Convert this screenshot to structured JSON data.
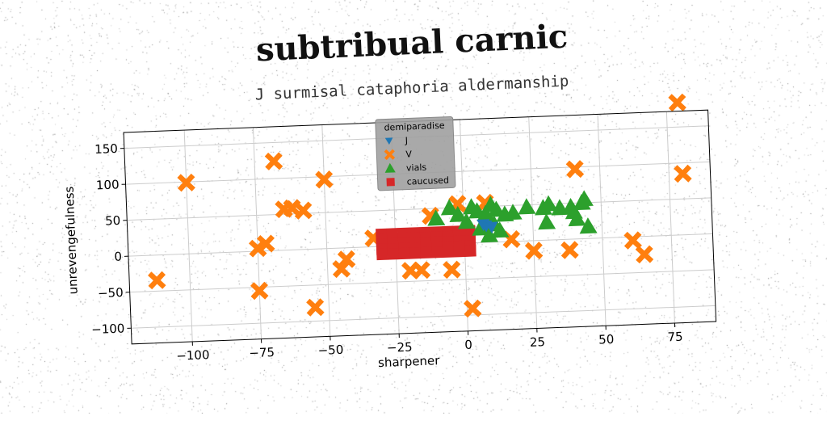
{
  "title": "subtribual carnic",
  "subtitle": "J surmisal cataphoria aldermanship",
  "colors": {
    "J": "#1f77b4",
    "V": "#ff7f0e",
    "vials": "#2ca02c",
    "caucused": "#d62728",
    "grid": "#cccccc",
    "legend_bg": "#a0a0a0"
  },
  "chart_data": {
    "type": "scatter",
    "title": "subtribual carnic",
    "subtitle": "J surmisal cataphoria aldermanship",
    "xlabel": "sharpener",
    "ylabel": "unrevengefulness",
    "xlim": [
      -122,
      90
    ],
    "ylim": [
      -122,
      172
    ],
    "xticks": [
      -100,
      -75,
      -50,
      -25,
      0,
      25,
      50,
      75
    ],
    "xtick_labels": [
      "−100",
      "−75",
      "−50",
      "−25",
      "0",
      "25",
      "50",
      "75"
    ],
    "yticks": [
      -100,
      -50,
      0,
      50,
      100,
      150
    ],
    "ytick_labels": [
      "−100",
      "−50",
      "0",
      "50",
      "100",
      "150"
    ],
    "grid": true,
    "legend": {
      "title": "demiparadise",
      "placement": "top-center",
      "entries": [
        "J",
        "V",
        "vials",
        "caucused"
      ]
    },
    "series": [
      {
        "name": "J",
        "marker": "triangle-down",
        "points": [
          [
            7,
            25
          ],
          [
            8,
            23
          ],
          [
            10,
            21
          ]
        ]
      },
      {
        "name": "V",
        "marker": "x-filled",
        "points": [
          [
            79,
            184
          ],
          [
            80,
            85
          ],
          [
            -100,
            99
          ],
          [
            -68,
            124
          ],
          [
            -50,
            96
          ],
          [
            41,
            97
          ],
          [
            -65,
            57
          ],
          [
            -62,
            58
          ],
          [
            -58,
            54
          ],
          [
            -75,
            4
          ],
          [
            -72,
            10
          ],
          [
            -112,
            -35
          ],
          [
            -75,
            -55
          ],
          [
            -55,
            -81
          ],
          [
            -45,
            -29
          ],
          [
            -43,
            -16
          ],
          [
            -33,
            12
          ],
          [
            -28,
            -2
          ],
          [
            -20,
            -35
          ],
          [
            -16,
            -35
          ],
          [
            -5,
            -36
          ],
          [
            2,
            -91
          ],
          [
            -2,
            55
          ],
          [
            -12,
            40
          ],
          [
            8,
            55
          ],
          [
            17,
            3
          ],
          [
            25,
            -14
          ],
          [
            38,
            -15
          ],
          [
            61,
            -5
          ],
          [
            65,
            -25
          ],
          [
            -22,
            2
          ]
        ]
      },
      {
        "name": "vials",
        "marker": "triangle-up",
        "points": [
          [
            -10,
            36
          ],
          [
            -5,
            50
          ],
          [
            3,
            50
          ],
          [
            5,
            44
          ],
          [
            8,
            40
          ],
          [
            10,
            52
          ],
          [
            12,
            45
          ],
          [
            15,
            38
          ],
          [
            11,
            25
          ],
          [
            6,
            20
          ],
          [
            13,
            16
          ],
          [
            9,
            10
          ],
          [
            18,
            40
          ],
          [
            23,
            47
          ],
          [
            29,
            45
          ],
          [
            31,
            50
          ],
          [
            30,
            25
          ],
          [
            35,
            44
          ],
          [
            39,
            45
          ],
          [
            40,
            38
          ],
          [
            43,
            50
          ],
          [
            44,
            55
          ],
          [
            41,
            28
          ],
          [
            45,
            17
          ],
          [
            -2,
            40
          ],
          [
            1,
            30
          ]
        ]
      },
      {
        "name": "caucused",
        "marker": "square",
        "points": [
          [
            -30,
            17
          ],
          [
            -30,
            10
          ],
          [
            -30,
            3
          ],
          [
            -30,
            -4
          ],
          [
            -30,
            -11
          ],
          [
            -26,
            17
          ],
          [
            -26,
            10
          ],
          [
            -26,
            3
          ],
          [
            -26,
            -4
          ],
          [
            -26,
            -11
          ],
          [
            -22,
            17
          ],
          [
            -22,
            10
          ],
          [
            -22,
            3
          ],
          [
            -22,
            -4
          ],
          [
            -22,
            -11
          ],
          [
            -18,
            17
          ],
          [
            -18,
            10
          ],
          [
            -18,
            3
          ],
          [
            -18,
            -4
          ],
          [
            -18,
            -11
          ],
          [
            -14,
            17
          ],
          [
            -14,
            10
          ],
          [
            -14,
            3
          ],
          [
            -14,
            -4
          ],
          [
            -14,
            -11
          ],
          [
            -10,
            17
          ],
          [
            -10,
            10
          ],
          [
            -10,
            3
          ],
          [
            -10,
            -4
          ],
          [
            -10,
            -11
          ],
          [
            -6,
            17
          ],
          [
            -6,
            10
          ],
          [
            -6,
            3
          ],
          [
            -6,
            -4
          ],
          [
            -6,
            -11
          ],
          [
            -2,
            17
          ],
          [
            -2,
            10
          ],
          [
            -2,
            3
          ],
          [
            -2,
            -4
          ],
          [
            -2,
            -11
          ],
          [
            2,
            17
          ],
          [
            2,
            10
          ],
          [
            2,
            3
          ],
          [
            2,
            -4
          ],
          [
            2,
            -11
          ]
        ]
      }
    ]
  }
}
